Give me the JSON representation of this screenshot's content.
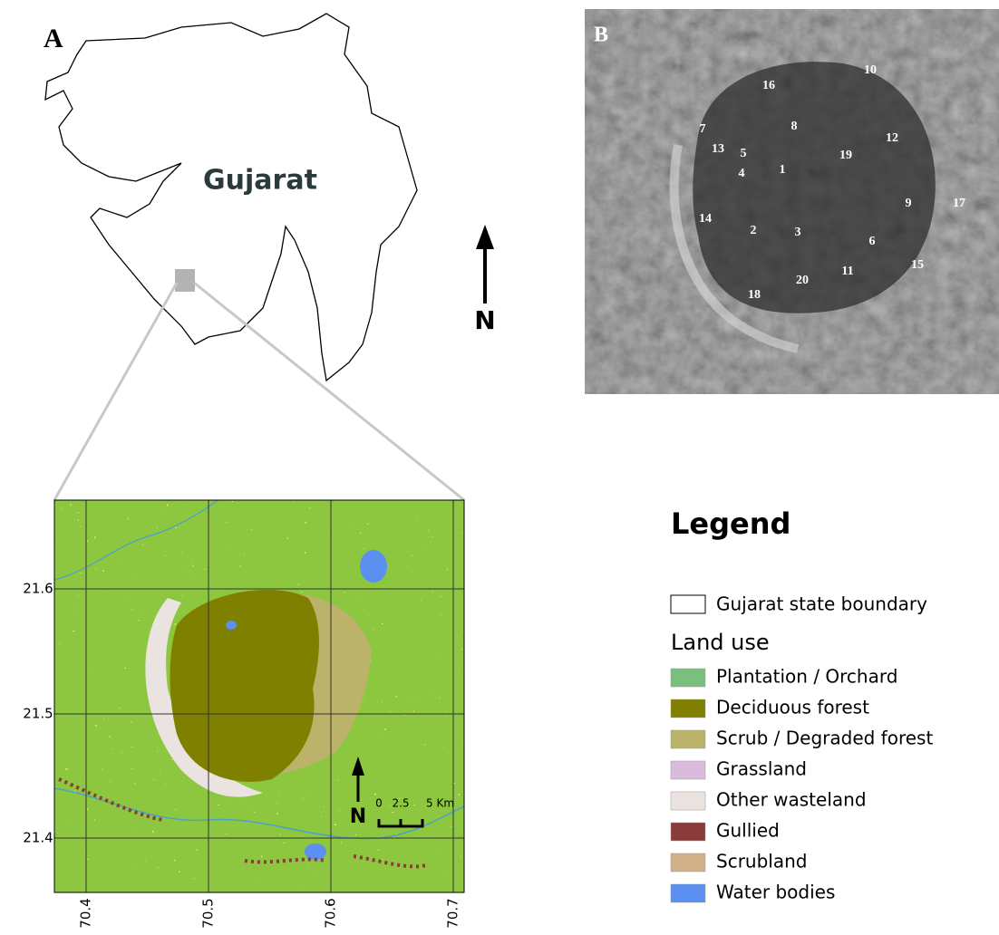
{
  "panel_a": {
    "letter": "A",
    "state_name": "Gujarat",
    "north": "N"
  },
  "panel_b": {
    "letter": "B",
    "site_labels": [
      10,
      16,
      8,
      7,
      13,
      5,
      12,
      19,
      4,
      1,
      9,
      17,
      14,
      2,
      3,
      6,
      15,
      11,
      20,
      18
    ]
  },
  "inset_map": {
    "lat_labels": [
      21.6,
      21.5,
      21.4
    ],
    "lon_labels": [
      70.4,
      70.5,
      70.6,
      70.7
    ],
    "north": "N",
    "scale_labels": [
      "0",
      "2.5",
      "5 Km"
    ]
  },
  "legend": {
    "title": "Legend",
    "boundary_label": "Gujarat state boundary",
    "section": "Land use",
    "items": [
      {
        "label": "Plantation / Orchard",
        "color": "#7bbf7f"
      },
      {
        "label": "Deciduous forest",
        "color": "#808000"
      },
      {
        "label": "Scrub / Degraded forest",
        "color": "#bcb36a"
      },
      {
        "label": "Grassland",
        "color": "#d9bcdc"
      },
      {
        "label": "Other wasteland",
        "color": "#ebe3df"
      },
      {
        "label": "Gullied",
        "color": "#8a3b3b"
      },
      {
        "label": "Scrubland",
        "color": "#d2b08a"
      },
      {
        "label": "Water bodies",
        "color": "#5b8ff0"
      }
    ]
  }
}
